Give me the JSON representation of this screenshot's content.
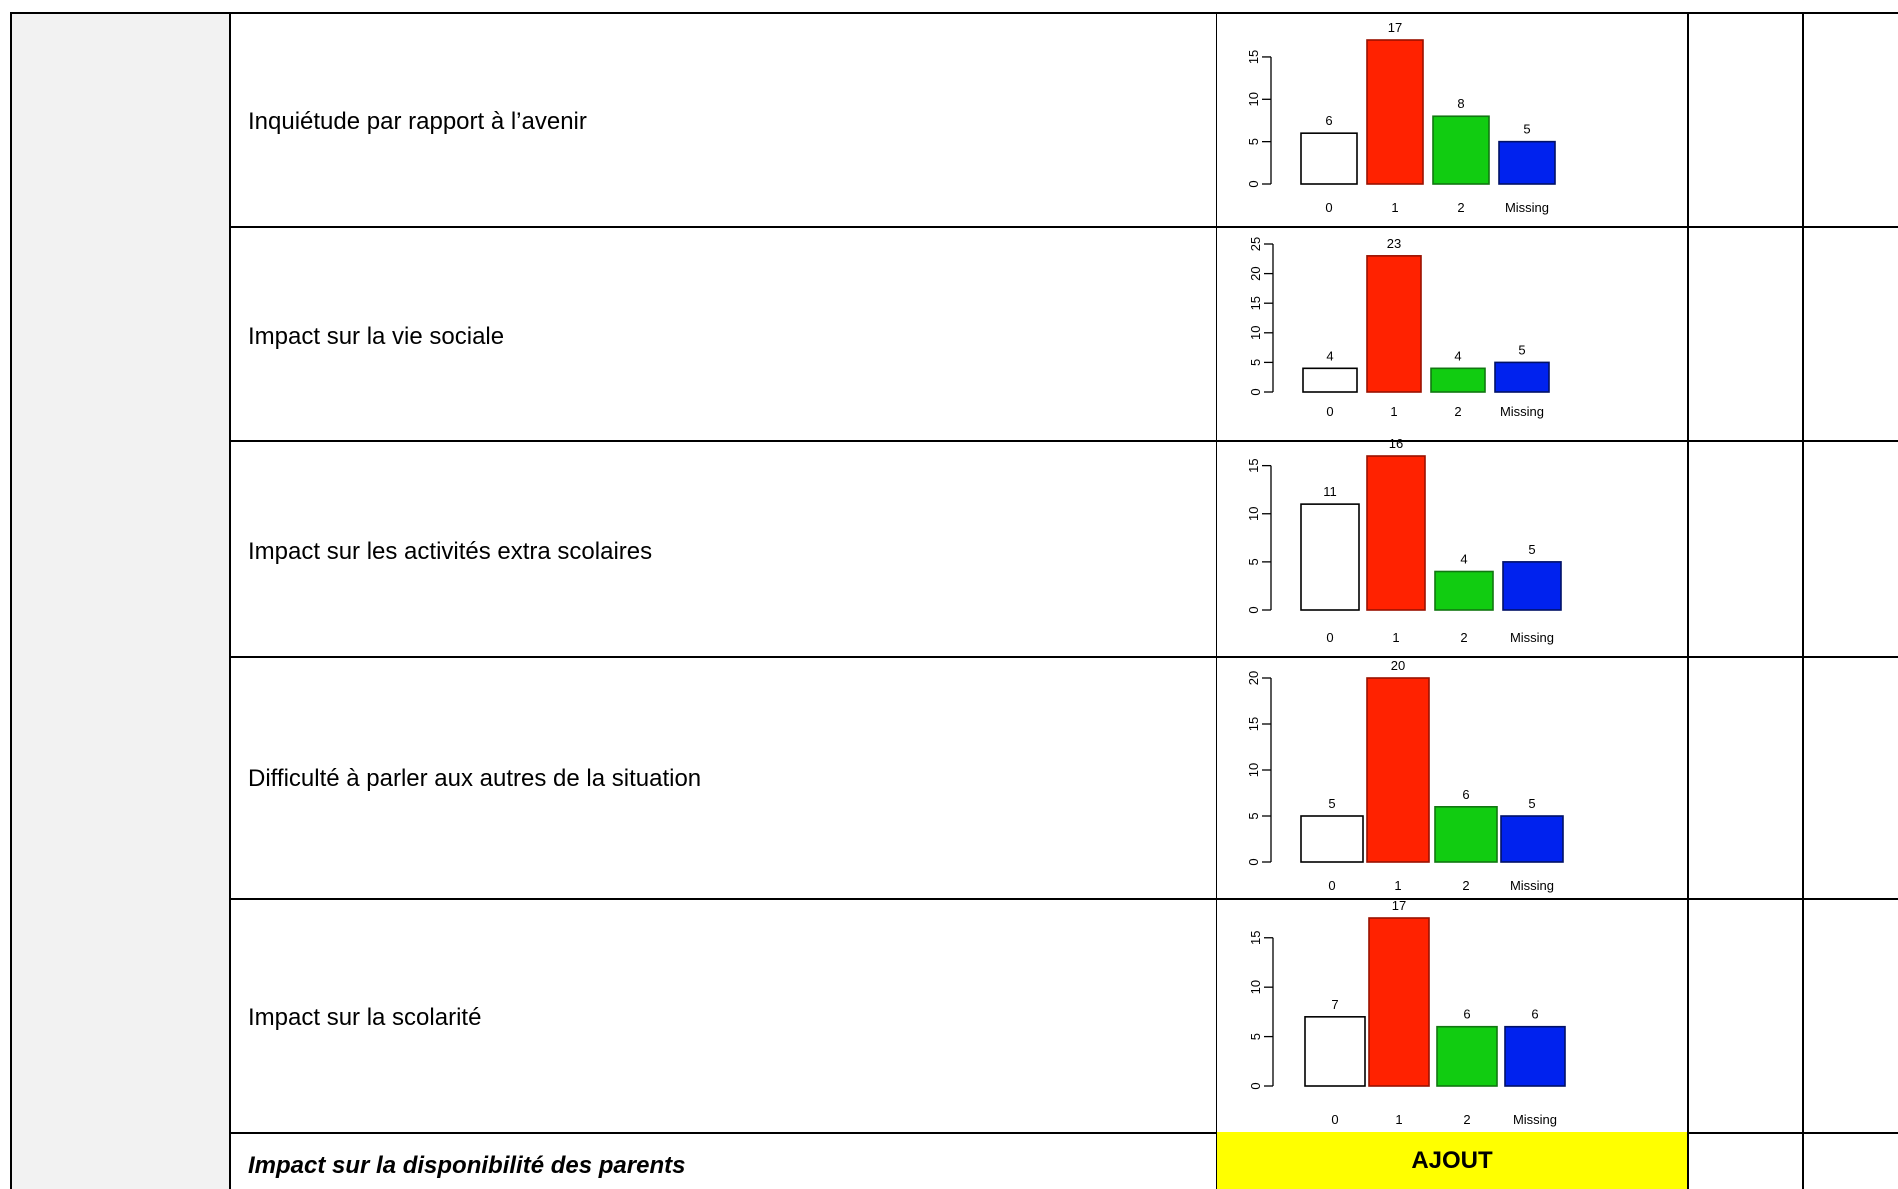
{
  "rows": [
    {
      "label": "Inquiétude par rapport à l’avenir"
    },
    {
      "label": "Impact sur la vie sociale"
    },
    {
      "label": "Impact sur les activités extra scolaires"
    },
    {
      "label": "Difficulté à parler aux autres de la situation"
    },
    {
      "label": "Impact sur la scolarité"
    },
    {
      "label": "Impact sur la disponibilité des parents",
      "note": "AJOUT"
    }
  ],
  "colors": {
    "cat0": "#ffffff",
    "cat1": "#ff2200",
    "cat2": "#11cc11",
    "missing": "#0022ee",
    "ajout_bg": "#ffff00"
  },
  "chart_data": [
    {
      "type": "bar",
      "categories": [
        "0",
        "1",
        "2",
        "Missing"
      ],
      "values": [
        6,
        17,
        8,
        5
      ],
      "yticks": [
        "0",
        "5",
        "10",
        "15"
      ],
      "ylim": [
        0,
        17
      ],
      "value_labels": [
        "6",
        "17",
        "8",
        "5"
      ]
    },
    {
      "type": "bar",
      "categories": [
        "0",
        "1",
        "2",
        "Missing"
      ],
      "values": [
        4,
        23,
        4,
        5
      ],
      "yticks": [
        "0",
        "5",
        "10",
        "15",
        "20",
        "25"
      ],
      "ylim": [
        0,
        25
      ],
      "value_labels": [
        "4",
        "23",
        "4",
        "5"
      ]
    },
    {
      "type": "bar",
      "categories": [
        "0",
        "1",
        "2",
        "Missing"
      ],
      "values": [
        11,
        16,
        4,
        5
      ],
      "yticks": [
        "0",
        "5",
        "10",
        "15"
      ],
      "ylim": [
        0,
        16
      ],
      "value_labels": [
        "11",
        "16",
        "4",
        "5"
      ]
    },
    {
      "type": "bar",
      "categories": [
        "0",
        "1",
        "2",
        "Missing"
      ],
      "values": [
        5,
        20,
        6,
        5
      ],
      "yticks": [
        "0",
        "5",
        "10",
        "15",
        "20"
      ],
      "ylim": [
        0,
        20
      ],
      "value_labels": [
        "5",
        "20",
        "6",
        "5"
      ]
    },
    {
      "type": "bar",
      "categories": [
        "0",
        "1",
        "2",
        "Missing"
      ],
      "values": [
        7,
        17,
        6,
        6
      ],
      "yticks": [
        "0",
        "5",
        "10",
        "15"
      ],
      "ylim": [
        0,
        17
      ],
      "value_labels": [
        "7",
        "17",
        "6",
        "6"
      ]
    }
  ]
}
